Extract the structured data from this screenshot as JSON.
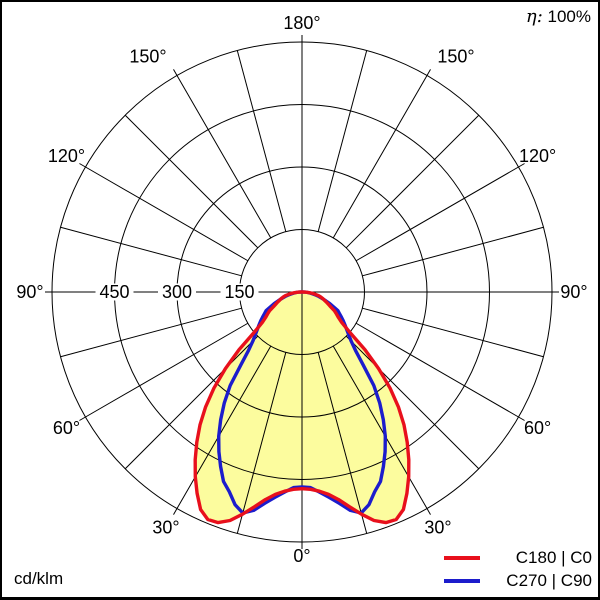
{
  "header": {
    "efficiency_symbol": "η:",
    "efficiency_value": "100%"
  },
  "footer": {
    "unit_label": "cd/klm"
  },
  "legend": {
    "items": [
      {
        "label": "C180 | C0",
        "color": "#e8101c"
      },
      {
        "label": "C270 | C90",
        "color": "#1c1ccc"
      }
    ]
  },
  "chart_data": {
    "type": "polar",
    "kind": "luminous-intensity-distribution",
    "unit": "cd/klm",
    "efficiency_percent": 100,
    "grid_color": "#000000",
    "radial_axis": {
      "max": 600,
      "ring_step": 150,
      "ticks": [
        {
          "value": 150,
          "text": "150"
        },
        {
          "value": 300,
          "text": "300"
        },
        {
          "value": 450,
          "text": "450"
        }
      ]
    },
    "angle_axis": {
      "grid_step_deg": 15,
      "labels": [
        {
          "angle": 0,
          "text": "0°"
        },
        {
          "angle": 30,
          "text": "30°"
        },
        {
          "angle": 60,
          "text": "60°"
        },
        {
          "angle": 90,
          "text": "90°"
        },
        {
          "angle": 120,
          "text": "120°"
        },
        {
          "angle": 150,
          "text": "150°"
        },
        {
          "angle": 180,
          "text": "180°"
        }
      ]
    },
    "series": [
      {
        "name": "C180 | C0",
        "color": "#e8101c",
        "fill": "#fcfc9e",
        "points": [
          [
            0,
            472
          ],
          [
            2.5,
            474
          ],
          [
            5,
            480
          ],
          [
            7.5,
            490
          ],
          [
            10,
            506
          ],
          [
            12.5,
            528
          ],
          [
            15,
            552
          ],
          [
            17.5,
            575
          ],
          [
            20,
            589
          ],
          [
            22.5,
            591
          ],
          [
            25,
            576
          ],
          [
            27.5,
            545
          ],
          [
            30,
            512
          ],
          [
            32.5,
            477
          ],
          [
            35,
            440
          ],
          [
            37.5,
            402
          ],
          [
            40,
            360
          ],
          [
            42.5,
            313
          ],
          [
            45,
            260
          ],
          [
            47.5,
            205
          ],
          [
            50,
            148
          ],
          [
            52.5,
            120
          ],
          [
            55,
            107
          ],
          [
            57.5,
            98
          ],
          [
            60,
            90
          ],
          [
            62.5,
            78
          ],
          [
            65,
            70
          ],
          [
            67.5,
            63
          ],
          [
            70,
            57
          ],
          [
            72.5,
            52
          ],
          [
            75,
            47
          ],
          [
            77.5,
            41
          ],
          [
            80,
            33
          ],
          [
            82.5,
            26
          ],
          [
            85,
            18
          ],
          [
            87.5,
            10
          ],
          [
            90,
            2
          ]
        ]
      },
      {
        "name": "C270 | C90",
        "color": "#1c1ccc",
        "fill": null,
        "points": [
          [
            0,
            468
          ],
          [
            2.5,
            470
          ],
          [
            5,
            482
          ],
          [
            7.5,
            497
          ],
          [
            10,
            515
          ],
          [
            12.5,
            537
          ],
          [
            15,
            549
          ],
          [
            17.5,
            535
          ],
          [
            20,
            510
          ],
          [
            22.5,
            492
          ],
          [
            25,
            462
          ],
          [
            27.5,
            432
          ],
          [
            30,
            400
          ],
          [
            32.5,
            363
          ],
          [
            35,
            325
          ],
          [
            37.5,
            283
          ],
          [
            40,
            228
          ],
          [
            42.5,
            190
          ],
          [
            45,
            167
          ],
          [
            47.5,
            152
          ],
          [
            50,
            140
          ],
          [
            52.5,
            130
          ],
          [
            55,
            121
          ],
          [
            57.5,
            112
          ],
          [
            60,
            104
          ],
          [
            62.5,
            97
          ],
          [
            65,
            82
          ],
          [
            67.5,
            72
          ],
          [
            70,
            60
          ],
          [
            72.5,
            50
          ],
          [
            75,
            42
          ],
          [
            77.5,
            34
          ],
          [
            80,
            27
          ],
          [
            82.5,
            20
          ],
          [
            85,
            14
          ],
          [
            87.5,
            8
          ],
          [
            90,
            2
          ]
        ]
      }
    ]
  }
}
